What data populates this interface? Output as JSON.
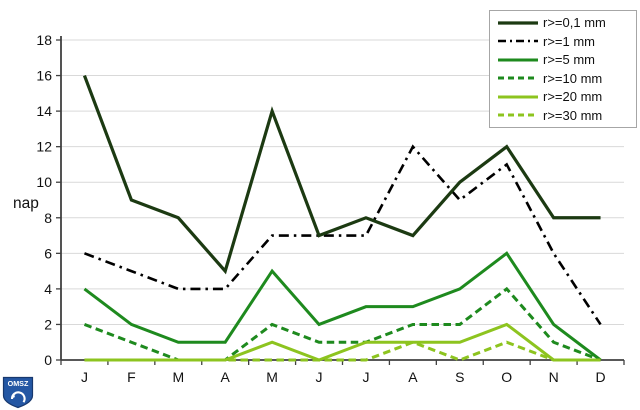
{
  "chart_data": {
    "type": "line",
    "title": "",
    "ylabel": "nap",
    "xlabel": "",
    "categories": [
      "J",
      "F",
      "M",
      "A",
      "M",
      "J",
      "J",
      "A",
      "S",
      "O",
      "N",
      "D"
    ],
    "ylim": [
      0,
      18
    ],
    "ytick_step": 2,
    "grid": true,
    "legend_position": "top-right",
    "series": [
      {
        "name": "r>=0,1 mm",
        "color": "#1c3a12",
        "style": "solid",
        "width": 3.2,
        "values": [
          16,
          9,
          8,
          5,
          14,
          7,
          8,
          7,
          10,
          12,
          8,
          8
        ]
      },
      {
        "name": "r>=1 mm",
        "color": "#000000",
        "style": "dashdot",
        "width": 2.6,
        "values": [
          6,
          5,
          4,
          4,
          7,
          7,
          7,
          12,
          9,
          11,
          6,
          2
        ]
      },
      {
        "name": "r>=5 mm",
        "color": "#1e8a1e",
        "style": "solid",
        "width": 3,
        "values": [
          4,
          2,
          1,
          1,
          5,
          2,
          3,
          3,
          4,
          6,
          2,
          0
        ]
      },
      {
        "name": "r>=10 mm",
        "color": "#1e8a1e",
        "style": "dashed",
        "width": 3,
        "values": [
          2,
          1,
          0,
          0,
          2,
          1,
          1,
          2,
          2,
          4,
          1,
          0
        ]
      },
      {
        "name": "r>=20 mm",
        "color": "#8dc41f",
        "style": "solid",
        "width": 3,
        "values": [
          0,
          0,
          0,
          0,
          1,
          0,
          1,
          1,
          1,
          2,
          0,
          0
        ]
      },
      {
        "name": "r>=30 mm",
        "color": "#8dc41f",
        "style": "dashed",
        "width": 3,
        "values": [
          0,
          0,
          0,
          0,
          0,
          0,
          0,
          1,
          0,
          1,
          0,
          0
        ]
      }
    ]
  },
  "colors": {
    "grid": "#d9d9d9",
    "axis": "#404040",
    "background": "#ffffff",
    "legend_border": "#a6a6a6",
    "logo_blue": "#2457a4",
    "logo_dark_blue": "#17386e"
  },
  "logo": {
    "text": "OMSZ"
  }
}
